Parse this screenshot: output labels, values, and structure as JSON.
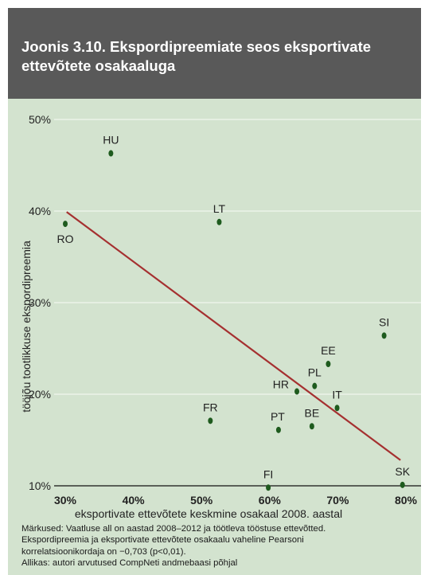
{
  "header": {
    "title": "Joonis 3.10. Ekspordipreemiate seos eksportivate ettevõtete osakaaluga"
  },
  "chart_data": {
    "type": "scatter",
    "title": "Joonis 3.10. Ekspordipreemiate seos eksportivate ettevõtete osakaaluga",
    "xlabel": "eksportivate ettevõtete keskmine osakaal 2008. aastal",
    "ylabel": "tööjõu tootlikkuse ekspordipreemia",
    "xlim": [
      30,
      80
    ],
    "ylim": [
      10,
      50
    ],
    "x_ticks": [
      "30%",
      "40%",
      "50%",
      "60%",
      "70%",
      "80%"
    ],
    "y_ticks": [
      "10%",
      "20%",
      "30%",
      "40%",
      "50%"
    ],
    "grid": true,
    "points": [
      {
        "label": "HU",
        "x": 36.7,
        "y": 46.3
      },
      {
        "label": "RO",
        "x": 30.0,
        "y": 38.6
      },
      {
        "label": "LT",
        "x": 52.6,
        "y": 38.8
      },
      {
        "label": "SI",
        "x": 76.8,
        "y": 26.4
      },
      {
        "label": "EE",
        "x": 68.6,
        "y": 23.3
      },
      {
        "label": "PL",
        "x": 66.6,
        "y": 20.9
      },
      {
        "label": "HR",
        "x": 64.0,
        "y": 20.3
      },
      {
        "label": "IT",
        "x": 69.9,
        "y": 18.5
      },
      {
        "label": "FR",
        "x": 51.3,
        "y": 17.1
      },
      {
        "label": "BE",
        "x": 66.2,
        "y": 16.5
      },
      {
        "label": "PT",
        "x": 61.3,
        "y": 16.1
      },
      {
        "label": "FI",
        "x": 59.8,
        "y": 9.8
      },
      {
        "label": "SK",
        "x": 79.5,
        "y": 10.1
      }
    ],
    "trendline": {
      "x": [
        30.2,
        79.2
      ],
      "y": [
        39.9,
        12.8
      ]
    },
    "colors": {
      "points": "#1e5b1e",
      "trendline": "#a53030",
      "grid": "#f0f6ee",
      "background": "#d3e3cf"
    }
  },
  "notes": {
    "line1": "Märkused: Vaatluse all on aastad 2008–2012 ja töötleva tööstuse ettevõtted.",
    "line2": "Ekspordipreemia ja eksportivate ettevõtete osakaalu vaheline Pearsoni",
    "line3": "korrelatsioonikordaja on −0,703 (p<0,01).",
    "line4": "Allikas: autori arvutused CompNeti andmebaasi põhjal"
  }
}
